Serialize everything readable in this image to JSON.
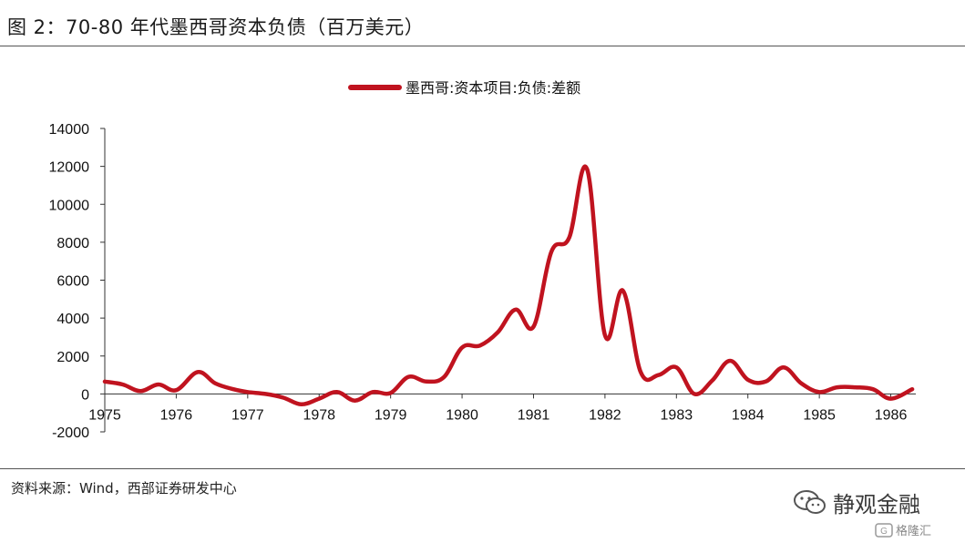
{
  "header": {
    "title": "图 2：70-80 年代墨西哥资本负债（百万美元）"
  },
  "footer": {
    "source": "资料来源：Wind，西部证券研发中心"
  },
  "watermark": {
    "text": "静观金融",
    "icon": "wechat-icon",
    "corner_text": "格隆汇",
    "corner_icon": "glh-logo-icon"
  },
  "chart_data": {
    "type": "line",
    "title": "",
    "xlabel": "",
    "ylabel": "",
    "xlim": [
      1975,
      1986.35
    ],
    "ylim": [
      -2000,
      14000
    ],
    "x_ticks": [
      "1975",
      "1976",
      "1977",
      "1978",
      "1979",
      "1980",
      "1981",
      "1982",
      "1983",
      "1984",
      "1985",
      "1986"
    ],
    "y_ticks": [
      "14000",
      "12000",
      "10000",
      "8000",
      "6000",
      "4000",
      "2000",
      "0",
      "-2000"
    ],
    "grid": false,
    "legend": "top-center",
    "series": [
      {
        "name": "墨西哥:资本项目:负债:差额",
        "color": "#c0131f",
        "points": [
          [
            1975.0,
            650
          ],
          [
            1975.25,
            500
          ],
          [
            1975.5,
            150
          ],
          [
            1975.75,
            500
          ],
          [
            1976.0,
            200
          ],
          [
            1976.3,
            1150
          ],
          [
            1976.55,
            550
          ],
          [
            1976.8,
            250
          ],
          [
            1977.0,
            100
          ],
          [
            1977.25,
            0
          ],
          [
            1977.5,
            -200
          ],
          [
            1977.75,
            -550
          ],
          [
            1978.0,
            -250
          ],
          [
            1978.25,
            100
          ],
          [
            1978.5,
            -350
          ],
          [
            1978.75,
            100
          ],
          [
            1979.0,
            50
          ],
          [
            1979.25,
            900
          ],
          [
            1979.5,
            650
          ],
          [
            1979.75,
            900
          ],
          [
            1980.0,
            2450
          ],
          [
            1980.25,
            2550
          ],
          [
            1980.5,
            3250
          ],
          [
            1980.75,
            4450
          ],
          [
            1981.0,
            3550
          ],
          [
            1981.25,
            7500
          ],
          [
            1981.5,
            8250
          ],
          [
            1981.75,
            11850
          ],
          [
            1982.0,
            3100
          ],
          [
            1982.25,
            5450
          ],
          [
            1982.5,
            1150
          ],
          [
            1982.75,
            1000
          ],
          [
            1983.0,
            1400
          ],
          [
            1983.25,
            0
          ],
          [
            1983.5,
            700
          ],
          [
            1983.75,
            1750
          ],
          [
            1984.0,
            750
          ],
          [
            1984.25,
            650
          ],
          [
            1984.5,
            1400
          ],
          [
            1984.75,
            550
          ],
          [
            1985.0,
            100
          ],
          [
            1985.25,
            350
          ],
          [
            1985.5,
            350
          ],
          [
            1985.75,
            250
          ],
          [
            1986.0,
            -250
          ],
          [
            1986.3,
            250
          ]
        ]
      }
    ]
  }
}
